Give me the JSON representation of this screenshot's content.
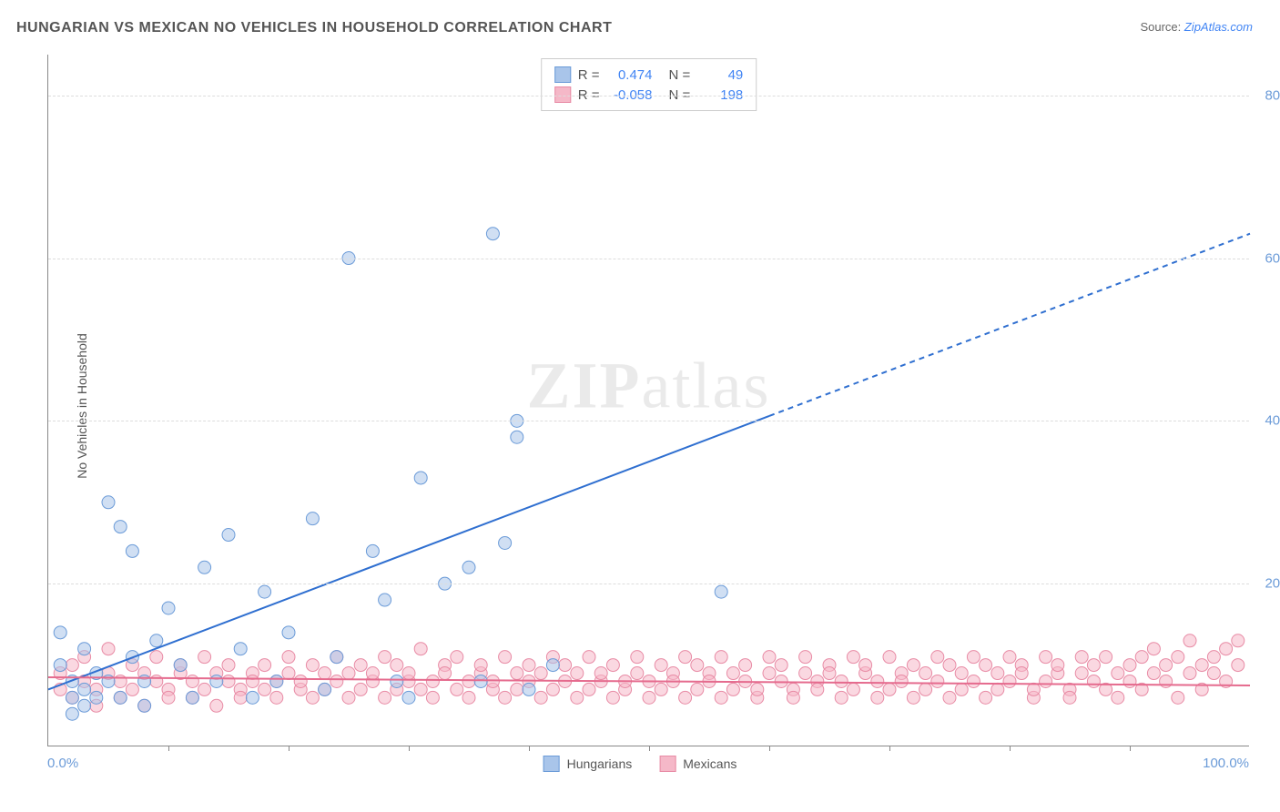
{
  "title": "HUNGARIAN VS MEXICAN NO VEHICLES IN HOUSEHOLD CORRELATION CHART",
  "source_prefix": "Source: ",
  "source_link": "ZipAtlas.com",
  "ylabel": "No Vehicles in Household",
  "watermark": "ZIPatlas",
  "chart": {
    "type": "scatter",
    "xlim": [
      0,
      100
    ],
    "ylim": [
      0,
      85
    ],
    "x_tick_step": 10,
    "y_ticks": [
      20,
      40,
      60,
      80
    ],
    "y_tick_labels": [
      "20.0%",
      "40.0%",
      "60.0%",
      "80.0%"
    ],
    "x_axis_left_label": "0.0%",
    "x_axis_right_label": "100.0%",
    "background_color": "#ffffff",
    "grid_color": "#dddddd",
    "point_radius": 7,
    "point_opacity": 0.55,
    "series": [
      {
        "name": "Hungarians",
        "color_fill": "#a9c5ea",
        "color_stroke": "#6b9bd8",
        "trend": {
          "color": "#2f6fd0",
          "width": 2,
          "x1": 0,
          "y1": 7,
          "x2": 100,
          "y2": 63,
          "solid_until_x": 60
        },
        "stats": {
          "R": "0.474",
          "N": "49"
        },
        "points": [
          [
            1,
            10
          ],
          [
            1,
            14
          ],
          [
            2,
            8
          ],
          [
            2,
            6
          ],
          [
            2,
            4
          ],
          [
            3,
            12
          ],
          [
            3,
            7
          ],
          [
            3,
            5
          ],
          [
            4,
            9
          ],
          [
            4,
            6
          ],
          [
            5,
            30
          ],
          [
            5,
            8
          ],
          [
            6,
            27
          ],
          [
            6,
            6
          ],
          [
            7,
            11
          ],
          [
            7,
            24
          ],
          [
            8,
            8
          ],
          [
            8,
            5
          ],
          [
            9,
            13
          ],
          [
            10,
            17
          ],
          [
            11,
            10
          ],
          [
            12,
            6
          ],
          [
            13,
            22
          ],
          [
            14,
            8
          ],
          [
            15,
            26
          ],
          [
            16,
            12
          ],
          [
            17,
            6
          ],
          [
            18,
            19
          ],
          [
            19,
            8
          ],
          [
            20,
            14
          ],
          [
            22,
            28
          ],
          [
            23,
            7
          ],
          [
            24,
            11
          ],
          [
            25,
            60
          ],
          [
            27,
            24
          ],
          [
            28,
            18
          ],
          [
            29,
            8
          ],
          [
            30,
            6
          ],
          [
            31,
            33
          ],
          [
            33,
            20
          ],
          [
            35,
            22
          ],
          [
            36,
            8
          ],
          [
            37,
            63
          ],
          [
            38,
            25
          ],
          [
            39,
            40
          ],
          [
            39,
            38
          ],
          [
            40,
            7
          ],
          [
            42,
            10
          ],
          [
            56,
            19
          ]
        ]
      },
      {
        "name": "Mexicans",
        "color_fill": "#f5b8c8",
        "color_stroke": "#e88ba5",
        "trend": {
          "color": "#e56b8e",
          "width": 2,
          "x1": 0,
          "y1": 8.5,
          "x2": 100,
          "y2": 7.5,
          "solid_until_x": 100
        },
        "stats": {
          "R": "-0.058",
          "N": "198"
        },
        "points": [
          [
            1,
            9
          ],
          [
            1,
            7
          ],
          [
            2,
            10
          ],
          [
            2,
            6
          ],
          [
            3,
            8
          ],
          [
            3,
            11
          ],
          [
            4,
            7
          ],
          [
            4,
            5
          ],
          [
            5,
            9
          ],
          [
            5,
            12
          ],
          [
            6,
            8
          ],
          [
            6,
            6
          ],
          [
            7,
            10
          ],
          [
            7,
            7
          ],
          [
            8,
            9
          ],
          [
            8,
            5
          ],
          [
            9,
            11
          ],
          [
            9,
            8
          ],
          [
            10,
            7
          ],
          [
            10,
            6
          ],
          [
            11,
            9
          ],
          [
            11,
            10
          ],
          [
            12,
            8
          ],
          [
            12,
            6
          ],
          [
            13,
            7
          ],
          [
            13,
            11
          ],
          [
            14,
            9
          ],
          [
            14,
            5
          ],
          [
            15,
            8
          ],
          [
            15,
            10
          ],
          [
            16,
            7
          ],
          [
            16,
            6
          ],
          [
            17,
            9
          ],
          [
            17,
            8
          ],
          [
            18,
            10
          ],
          [
            18,
            7
          ],
          [
            19,
            8
          ],
          [
            19,
            6
          ],
          [
            20,
            9
          ],
          [
            20,
            11
          ],
          [
            21,
            7
          ],
          [
            21,
            8
          ],
          [
            22,
            10
          ],
          [
            22,
            6
          ],
          [
            23,
            9
          ],
          [
            23,
            7
          ],
          [
            24,
            8
          ],
          [
            24,
            11
          ],
          [
            25,
            9
          ],
          [
            25,
            6
          ],
          [
            26,
            10
          ],
          [
            26,
            7
          ],
          [
            27,
            8
          ],
          [
            27,
            9
          ],
          [
            28,
            11
          ],
          [
            28,
            6
          ],
          [
            29,
            7
          ],
          [
            29,
            10
          ],
          [
            30,
            8
          ],
          [
            30,
            9
          ],
          [
            31,
            12
          ],
          [
            31,
            7
          ],
          [
            32,
            8
          ],
          [
            32,
            6
          ],
          [
            33,
            10
          ],
          [
            33,
            9
          ],
          [
            34,
            7
          ],
          [
            34,
            11
          ],
          [
            35,
            8
          ],
          [
            35,
            6
          ],
          [
            36,
            9
          ],
          [
            36,
            10
          ],
          [
            37,
            7
          ],
          [
            37,
            8
          ],
          [
            38,
            11
          ],
          [
            38,
            6
          ],
          [
            39,
            9
          ],
          [
            39,
            7
          ],
          [
            40,
            10
          ],
          [
            40,
            8
          ],
          [
            41,
            9
          ],
          [
            41,
            6
          ],
          [
            42,
            11
          ],
          [
            42,
            7
          ],
          [
            43,
            8
          ],
          [
            43,
            10
          ],
          [
            44,
            9
          ],
          [
            44,
            6
          ],
          [
            45,
            7
          ],
          [
            45,
            11
          ],
          [
            46,
            8
          ],
          [
            46,
            9
          ],
          [
            47,
            10
          ],
          [
            47,
            6
          ],
          [
            48,
            7
          ],
          [
            48,
            8
          ],
          [
            49,
            11
          ],
          [
            49,
            9
          ],
          [
            50,
            8
          ],
          [
            50,
            6
          ],
          [
            51,
            10
          ],
          [
            51,
            7
          ],
          [
            52,
            9
          ],
          [
            52,
            8
          ],
          [
            53,
            11
          ],
          [
            53,
            6
          ],
          [
            54,
            7
          ],
          [
            54,
            10
          ],
          [
            55,
            9
          ],
          [
            55,
            8
          ],
          [
            56,
            6
          ],
          [
            56,
            11
          ],
          [
            57,
            7
          ],
          [
            57,
            9
          ],
          [
            58,
            10
          ],
          [
            58,
            8
          ],
          [
            59,
            6
          ],
          [
            59,
            7
          ],
          [
            60,
            11
          ],
          [
            60,
            9
          ],
          [
            61,
            8
          ],
          [
            61,
            10
          ],
          [
            62,
            7
          ],
          [
            62,
            6
          ],
          [
            63,
            9
          ],
          [
            63,
            11
          ],
          [
            64,
            8
          ],
          [
            64,
            7
          ],
          [
            65,
            10
          ],
          [
            65,
            9
          ],
          [
            66,
            6
          ],
          [
            66,
            8
          ],
          [
            67,
            11
          ],
          [
            67,
            7
          ],
          [
            68,
            9
          ],
          [
            68,
            10
          ],
          [
            69,
            8
          ],
          [
            69,
            6
          ],
          [
            70,
            7
          ],
          [
            70,
            11
          ],
          [
            71,
            9
          ],
          [
            71,
            8
          ],
          [
            72,
            10
          ],
          [
            72,
            6
          ],
          [
            73,
            7
          ],
          [
            73,
            9
          ],
          [
            74,
            11
          ],
          [
            74,
            8
          ],
          [
            75,
            10
          ],
          [
            75,
            6
          ],
          [
            76,
            9
          ],
          [
            76,
            7
          ],
          [
            77,
            8
          ],
          [
            77,
            11
          ],
          [
            78,
            10
          ],
          [
            78,
            6
          ],
          [
            79,
            9
          ],
          [
            79,
            7
          ],
          [
            80,
            8
          ],
          [
            80,
            11
          ],
          [
            81,
            10
          ],
          [
            81,
            9
          ],
          [
            82,
            6
          ],
          [
            82,
            7
          ],
          [
            83,
            11
          ],
          [
            83,
            8
          ],
          [
            84,
            9
          ],
          [
            84,
            10
          ],
          [
            85,
            7
          ],
          [
            85,
            6
          ],
          [
            86,
            11
          ],
          [
            86,
            9
          ],
          [
            87,
            8
          ],
          [
            87,
            10
          ],
          [
            88,
            7
          ],
          [
            88,
            11
          ],
          [
            89,
            9
          ],
          [
            89,
            6
          ],
          [
            90,
            10
          ],
          [
            90,
            8
          ],
          [
            91,
            11
          ],
          [
            91,
            7
          ],
          [
            92,
            9
          ],
          [
            92,
            12
          ],
          [
            93,
            8
          ],
          [
            93,
            10
          ],
          [
            94,
            11
          ],
          [
            94,
            6
          ],
          [
            95,
            9
          ],
          [
            95,
            13
          ],
          [
            96,
            10
          ],
          [
            96,
            7
          ],
          [
            97,
            11
          ],
          [
            97,
            9
          ],
          [
            98,
            12
          ],
          [
            98,
            8
          ],
          [
            99,
            13
          ],
          [
            99,
            10
          ]
        ]
      }
    ]
  },
  "legend_bottom": [
    {
      "label": "Hungarians",
      "fill": "#a9c5ea",
      "stroke": "#6b9bd8"
    },
    {
      "label": "Mexicans",
      "fill": "#f5b8c8",
      "stroke": "#e88ba5"
    }
  ]
}
